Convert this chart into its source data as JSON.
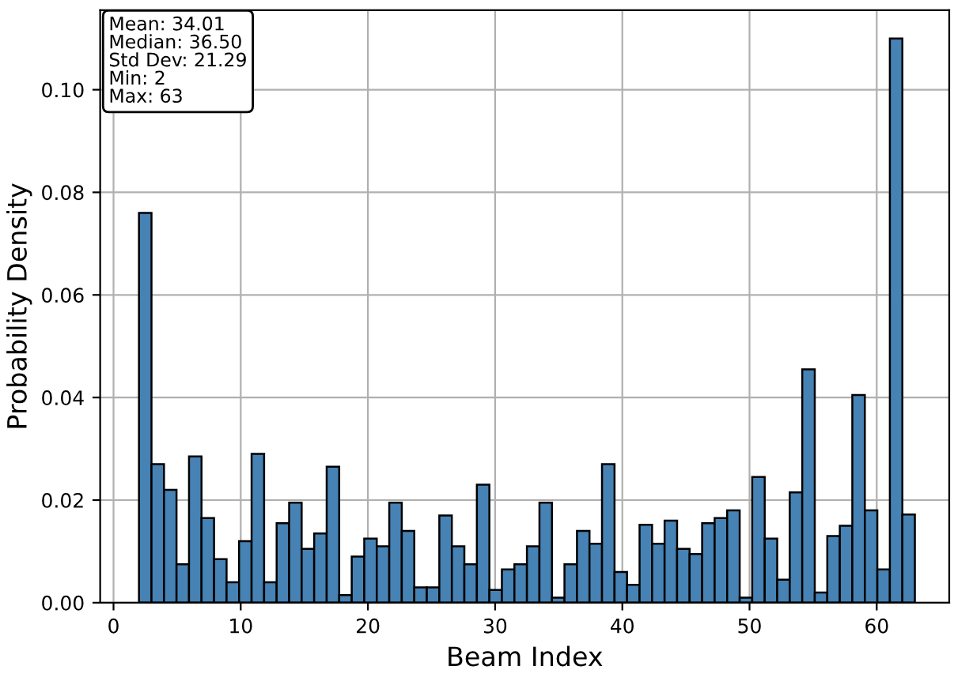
{
  "chart_data": {
    "type": "histogram",
    "xlabel": "Beam Index",
    "ylabel": "Probability Density",
    "annotations": [
      "Mean: 34.01\nMedian: 36.50\nStd Dev: 21.29\nMin: 2\nMax: 63"
    ],
    "bins": [
      2.0,
      2.984,
      3.968,
      4.952,
      5.935,
      6.919,
      7.903,
      8.887,
      9.871,
      10.855,
      11.839,
      12.823,
      13.806,
      14.79,
      15.774,
      16.758,
      17.742,
      18.726,
      19.71,
      20.694,
      21.677,
      22.661,
      23.645,
      24.629,
      25.613,
      26.597,
      27.581,
      28.565,
      29.548,
      30.532,
      31.516,
      32.5,
      33.484,
      34.468,
      35.452,
      36.435,
      37.419,
      38.403,
      39.387,
      40.371,
      41.355,
      42.339,
      43.323,
      44.306,
      45.29,
      46.274,
      47.258,
      48.242,
      49.226,
      50.21,
      51.194,
      52.177,
      53.161,
      54.145,
      55.129,
      56.113,
      57.097,
      58.081,
      59.065,
      60.048,
      61.032,
      62.016,
      63.0
    ],
    "values": [
      0.076,
      0.027,
      0.022,
      0.0075,
      0.0285,
      0.0165,
      0.0085,
      0.004,
      0.012,
      0.029,
      0.004,
      0.0155,
      0.0195,
      0.0105,
      0.0135,
      0.0265,
      0.0015,
      0.009,
      0.0125,
      0.011,
      0.0195,
      0.014,
      0.003,
      0.003,
      0.017,
      0.011,
      0.0075,
      0.023,
      0.0025,
      0.0065,
      0.0075,
      0.011,
      0.0195,
      0.001,
      0.0075,
      0.014,
      0.0115,
      0.027,
      0.006,
      0.0035,
      0.0152,
      0.0115,
      0.016,
      0.0105,
      0.0095,
      0.0155,
      0.0165,
      0.018,
      0.001,
      0.0245,
      0.0125,
      0.0045,
      0.0215,
      0.0455,
      0.002,
      0.013,
      0.015,
      0.0405,
      0.018,
      0.0065,
      0.11,
      0.0172
    ],
    "color": "#4682b4",
    "xlim": [
      -1.05,
      65.7
    ],
    "ylim": [
      0,
      0.1155
    ],
    "xticks": [
      0,
      10,
      20,
      30,
      40,
      50,
      60
    ],
    "yticks": [
      {
        "value": 0,
        "label": "0.00"
      },
      {
        "value": 0.02,
        "label": "0.02"
      },
      {
        "value": 0.04,
        "label": "0.04"
      },
      {
        "value": 0.06,
        "label": "0.06"
      },
      {
        "value": 0.08,
        "label": "0.08"
      },
      {
        "value": 0.1,
        "label": "0.10"
      }
    ],
    "grid": true
  }
}
